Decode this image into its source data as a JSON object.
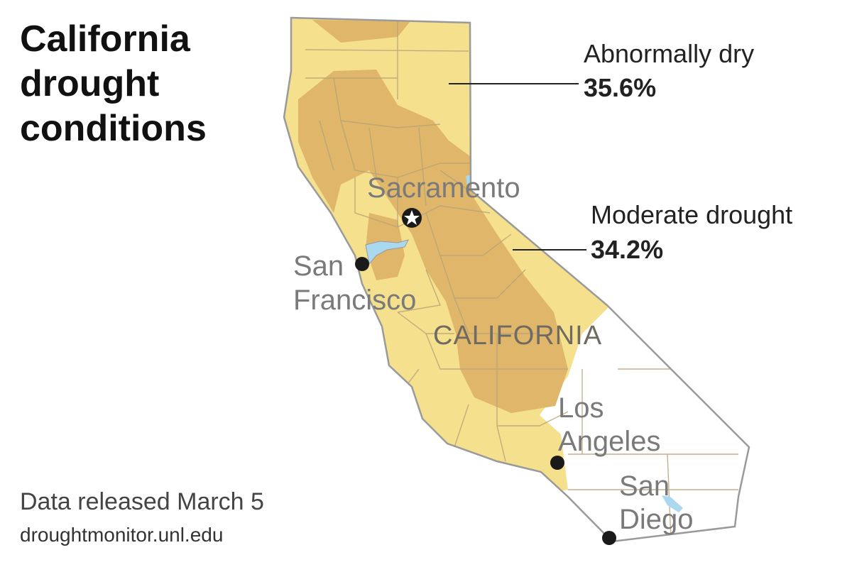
{
  "title": "California drought conditions",
  "source": {
    "date_text": "Data released March 5",
    "url_text": "droughtmonitor.unl.edu"
  },
  "legend": [
    {
      "name": "Abnormally dry",
      "percent": "35.6%",
      "color": "#f5e08e"
    },
    {
      "name": "Moderate drought",
      "percent": "34.2%",
      "color": "#dfb66a"
    }
  ],
  "colors": {
    "no_drought": "#ffffff",
    "state_outline": "#9a9a9a",
    "county_lines": "#b8a478",
    "water": "#aad8ef",
    "city_dot": "#1a1a1a"
  },
  "labels": {
    "state": "CALIFORNIA",
    "sacramento": "Sacramento",
    "sf_line1": "San",
    "sf_line2": "Francisco",
    "la_line1": "Los",
    "la_line2": "Angeles",
    "sd_line1": "San",
    "sd_line2": "Diego"
  },
  "markers": {
    "capital": "star-icon",
    "city": "dot-icon"
  }
}
